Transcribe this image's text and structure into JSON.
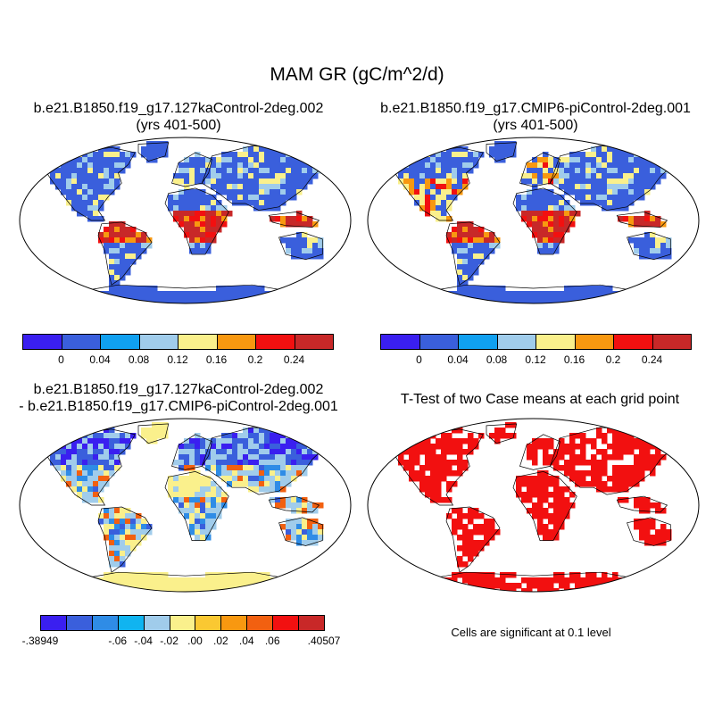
{
  "title": "MAM GR (gC/m^2/d)",
  "panels": [
    {
      "id": "p1",
      "title_line1": "b.e21.B1850.f19_g17.127kaControl-2deg.002",
      "title_line2": "(yrs 401-500)"
    },
    {
      "id": "p2",
      "title_line1": "b.e21.B1850.f19_g17.CMIP6-piControl-2deg.001",
      "title_line2": "(yrs 401-500)"
    },
    {
      "id": "p3",
      "title_line1": "b.e21.B1850.f19_g17.127kaControl-2deg.002",
      "title_line2": "- b.e21.B1850.f19_g17.CMIP6-piControl-2deg.001"
    },
    {
      "id": "p4",
      "title_line1": "T-Test of two Case means at each grid point"
    }
  ],
  "colorbars": {
    "abs": {
      "colors": [
        "#3a1ff0",
        "#3a5fdc",
        "#10a0f0",
        "#a0cceb",
        "#faf08c",
        "#f89810",
        "#f21010",
        "#c82828"
      ],
      "labels": [
        "0",
        "0.04",
        "0.08",
        "0.12",
        "0.16",
        "0.2",
        "0.24"
      ]
    },
    "diff": {
      "colors": [
        "#3a1ff0",
        "#3a5fdc",
        "#2f8ce6",
        "#10b4f0",
        "#a0cceb",
        "#faf08c",
        "#fac832",
        "#f89810",
        "#f26010",
        "#f21010",
        "#c82828"
      ],
      "labels": [
        "-.38949",
        "-.06",
        "-.04",
        "-.02",
        ".00",
        ".02",
        ".04",
        ".06",
        ".40507"
      ]
    }
  },
  "significance_note": "Cells are significant at 0.1 level",
  "colors": {
    "significant": "#f21010",
    "ocean": "#ffffff",
    "outline": "#000000"
  }
}
